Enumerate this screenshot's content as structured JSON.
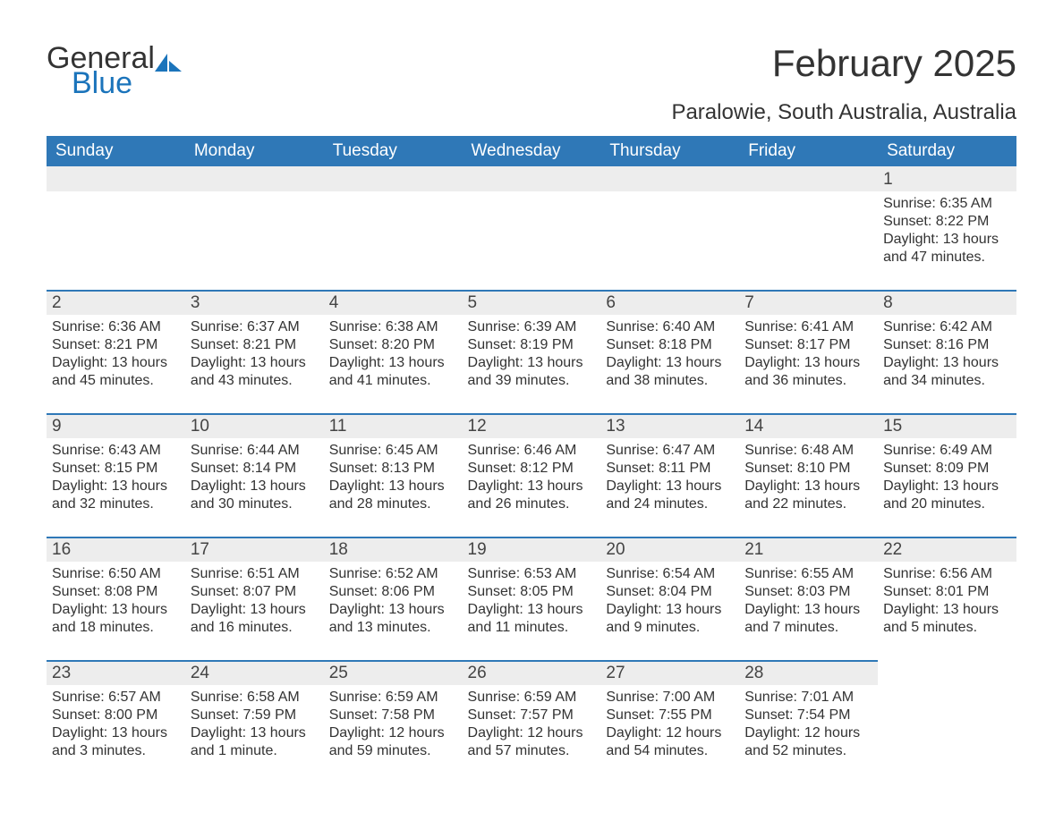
{
  "logo": {
    "word1": "General",
    "word2": "Blue"
  },
  "title": "February 2025",
  "location": "Paralowie, South Australia, Australia",
  "colors": {
    "header_bg": "#2f78b7",
    "header_text": "#ffffff",
    "daynum_bg": "#ededed",
    "text": "#333333",
    "logo_blue": "#1b74bb"
  },
  "day_labels": [
    "Sunday",
    "Monday",
    "Tuesday",
    "Wednesday",
    "Thursday",
    "Friday",
    "Saturday"
  ],
  "weeks": [
    [
      null,
      null,
      null,
      null,
      null,
      null,
      {
        "n": "1",
        "sr": "6:35 AM",
        "ss": "8:22 PM",
        "dl": "13 hours and 47 minutes."
      }
    ],
    [
      {
        "n": "2",
        "sr": "6:36 AM",
        "ss": "8:21 PM",
        "dl": "13 hours and 45 minutes."
      },
      {
        "n": "3",
        "sr": "6:37 AM",
        "ss": "8:21 PM",
        "dl": "13 hours and 43 minutes."
      },
      {
        "n": "4",
        "sr": "6:38 AM",
        "ss": "8:20 PM",
        "dl": "13 hours and 41 minutes."
      },
      {
        "n": "5",
        "sr": "6:39 AM",
        "ss": "8:19 PM",
        "dl": "13 hours and 39 minutes."
      },
      {
        "n": "6",
        "sr": "6:40 AM",
        "ss": "8:18 PM",
        "dl": "13 hours and 38 minutes."
      },
      {
        "n": "7",
        "sr": "6:41 AM",
        "ss": "8:17 PM",
        "dl": "13 hours and 36 minutes."
      },
      {
        "n": "8",
        "sr": "6:42 AM",
        "ss": "8:16 PM",
        "dl": "13 hours and 34 minutes."
      }
    ],
    [
      {
        "n": "9",
        "sr": "6:43 AM",
        "ss": "8:15 PM",
        "dl": "13 hours and 32 minutes."
      },
      {
        "n": "10",
        "sr": "6:44 AM",
        "ss": "8:14 PM",
        "dl": "13 hours and 30 minutes."
      },
      {
        "n": "11",
        "sr": "6:45 AM",
        "ss": "8:13 PM",
        "dl": "13 hours and 28 minutes."
      },
      {
        "n": "12",
        "sr": "6:46 AM",
        "ss": "8:12 PM",
        "dl": "13 hours and 26 minutes."
      },
      {
        "n": "13",
        "sr": "6:47 AM",
        "ss": "8:11 PM",
        "dl": "13 hours and 24 minutes."
      },
      {
        "n": "14",
        "sr": "6:48 AM",
        "ss": "8:10 PM",
        "dl": "13 hours and 22 minutes."
      },
      {
        "n": "15",
        "sr": "6:49 AM",
        "ss": "8:09 PM",
        "dl": "13 hours and 20 minutes."
      }
    ],
    [
      {
        "n": "16",
        "sr": "6:50 AM",
        "ss": "8:08 PM",
        "dl": "13 hours and 18 minutes."
      },
      {
        "n": "17",
        "sr": "6:51 AM",
        "ss": "8:07 PM",
        "dl": "13 hours and 16 minutes."
      },
      {
        "n": "18",
        "sr": "6:52 AM",
        "ss": "8:06 PM",
        "dl": "13 hours and 13 minutes."
      },
      {
        "n": "19",
        "sr": "6:53 AM",
        "ss": "8:05 PM",
        "dl": "13 hours and 11 minutes."
      },
      {
        "n": "20",
        "sr": "6:54 AM",
        "ss": "8:04 PM",
        "dl": "13 hours and 9 minutes."
      },
      {
        "n": "21",
        "sr": "6:55 AM",
        "ss": "8:03 PM",
        "dl": "13 hours and 7 minutes."
      },
      {
        "n": "22",
        "sr": "6:56 AM",
        "ss": "8:01 PM",
        "dl": "13 hours and 5 minutes."
      }
    ],
    [
      {
        "n": "23",
        "sr": "6:57 AM",
        "ss": "8:00 PM",
        "dl": "13 hours and 3 minutes."
      },
      {
        "n": "24",
        "sr": "6:58 AM",
        "ss": "7:59 PM",
        "dl": "13 hours and 1 minute."
      },
      {
        "n": "25",
        "sr": "6:59 AM",
        "ss": "7:58 PM",
        "dl": "12 hours and 59 minutes."
      },
      {
        "n": "26",
        "sr": "6:59 AM",
        "ss": "7:57 PM",
        "dl": "12 hours and 57 minutes."
      },
      {
        "n": "27",
        "sr": "7:00 AM",
        "ss": "7:55 PM",
        "dl": "12 hours and 54 minutes."
      },
      {
        "n": "28",
        "sr": "7:01 AM",
        "ss": "7:54 PM",
        "dl": "12 hours and 52 minutes."
      },
      null
    ]
  ],
  "labels": {
    "sunrise": "Sunrise: ",
    "sunset": "Sunset: ",
    "daylight": "Daylight: "
  }
}
